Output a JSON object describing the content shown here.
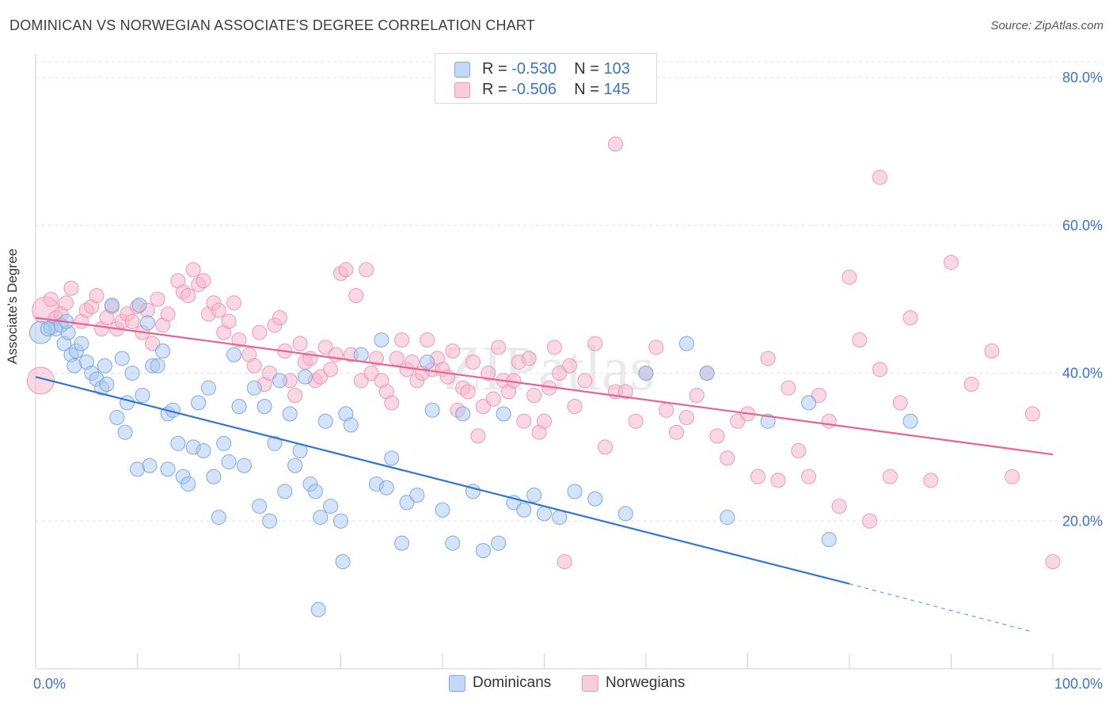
{
  "title": "DOMINICAN VS NORWEGIAN ASSOCIATE'S DEGREE CORRELATION CHART",
  "source": "Source: ZipAtlas.com",
  "watermark": "ZIPatlas",
  "legend_stats": [
    {
      "r_label": "R = ",
      "r_value": "-0.530",
      "n_label": "N = ",
      "n_value": "103"
    },
    {
      "r_label": "R = ",
      "r_value": "-0.506",
      "n_label": "N = ",
      "n_value": "145"
    }
  ],
  "bottom_legend": [
    "Dominicans",
    "Norwegians"
  ],
  "colors": {
    "blue_fill": "#a9c8f0",
    "blue_stroke": "#7ea9de",
    "blue_line": "#2f76cf",
    "pink_fill": "#f6b8cc",
    "pink_stroke": "#ee98b4",
    "pink_line": "#e8648f",
    "axis_label": "#3b73c7",
    "grid": "#e3e3e3"
  },
  "chart_data": {
    "type": "scatter",
    "title": "DOMINICAN VS NORWEGIAN ASSOCIATE'S DEGREE CORRELATION CHART",
    "xlabel": "",
    "ylabel": "Associate's Degree",
    "xlim": [
      0,
      100
    ],
    "ylim": [
      0,
      83
    ],
    "x_ticks": [
      "0.0%",
      "100.0%"
    ],
    "y_ticks": [
      "20.0%",
      "40.0%",
      "60.0%",
      "80.0%"
    ],
    "y_tick_values": [
      20,
      40,
      60,
      80
    ],
    "grid": "horizontal dashed",
    "legend_placement": "top-center and bottom",
    "series": [
      {
        "name": "Dominicans",
        "r": -0.53,
        "n": 103,
        "trend": {
          "x0": 0,
          "y0": 39.5,
          "x1": 80,
          "y1": 11.5,
          "dashed_to_x": 98,
          "dashed_to_y": 5
        },
        "points": [
          [
            0.5,
            45.5
          ],
          [
            1.5,
            46.2
          ],
          [
            2.0,
            46.0
          ],
          [
            2.5,
            46.5
          ],
          [
            1.2,
            46.0
          ],
          [
            2.8,
            44.0
          ],
          [
            3.2,
            45.5
          ],
          [
            3.5,
            42.5
          ],
          [
            4.0,
            43.0
          ],
          [
            3.0,
            47.0
          ],
          [
            4.5,
            44.0
          ],
          [
            5.0,
            41.5
          ],
          [
            3.8,
            41.0
          ],
          [
            5.5,
            40.0
          ],
          [
            6.0,
            39.2
          ],
          [
            6.5,
            38.0
          ],
          [
            7.0,
            38.5
          ],
          [
            6.8,
            41.0
          ],
          [
            7.5,
            49.2
          ],
          [
            8.5,
            42.0
          ],
          [
            8.0,
            34.0
          ],
          [
            9.0,
            36.0
          ],
          [
            8.8,
            32.0
          ],
          [
            9.5,
            40.0
          ],
          [
            10.2,
            49.2
          ],
          [
            10.5,
            37.0
          ],
          [
            11.0,
            46.8
          ],
          [
            11.5,
            41.0
          ],
          [
            12.0,
            41.0
          ],
          [
            12.5,
            43.0
          ],
          [
            13.0,
            34.5
          ],
          [
            13.5,
            35.0
          ],
          [
            10.0,
            27.0
          ],
          [
            11.2,
            27.5
          ],
          [
            13.0,
            27.0
          ],
          [
            14.0,
            30.5
          ],
          [
            14.5,
            26.0
          ],
          [
            15.0,
            25.0
          ],
          [
            15.5,
            30.0
          ],
          [
            16.0,
            36.0
          ],
          [
            16.5,
            29.5
          ],
          [
            17.0,
            38.0
          ],
          [
            17.5,
            26.0
          ],
          [
            18.0,
            20.5
          ],
          [
            18.5,
            30.5
          ],
          [
            19.0,
            28.0
          ],
          [
            19.5,
            42.5
          ],
          [
            20.0,
            35.5
          ],
          [
            20.5,
            27.5
          ],
          [
            21.5,
            38.0
          ],
          [
            22.0,
            22.0
          ],
          [
            22.5,
            35.5
          ],
          [
            23.0,
            20.0
          ],
          [
            23.5,
            30.5
          ],
          [
            24.0,
            39.0
          ],
          [
            24.5,
            24.0
          ],
          [
            25.0,
            34.5
          ],
          [
            25.5,
            27.5
          ],
          [
            26.0,
            29.5
          ],
          [
            26.5,
            39.5
          ],
          [
            27.0,
            25.0
          ],
          [
            27.5,
            24.0
          ],
          [
            28.0,
            20.5
          ],
          [
            28.5,
            33.5
          ],
          [
            29.0,
            22.0
          ],
          [
            30.0,
            20.0
          ],
          [
            30.5,
            34.5
          ],
          [
            31.0,
            33.0
          ],
          [
            32.0,
            42.5
          ],
          [
            33.5,
            25.0
          ],
          [
            34.0,
            44.5
          ],
          [
            34.5,
            24.5
          ],
          [
            35.0,
            28.5
          ],
          [
            36.0,
            17.0
          ],
          [
            36.5,
            22.5
          ],
          [
            37.5,
            23.5
          ],
          [
            38.5,
            41.5
          ],
          [
            39.0,
            35.0
          ],
          [
            40.0,
            21.5
          ],
          [
            41.0,
            17.0
          ],
          [
            42.0,
            34.5
          ],
          [
            43.0,
            24.0
          ],
          [
            44.0,
            16.0
          ],
          [
            45.5,
            17.0
          ],
          [
            46.0,
            34.5
          ],
          [
            47.0,
            22.5
          ],
          [
            48.0,
            21.5
          ],
          [
            49.0,
            23.5
          ],
          [
            50.0,
            21.0
          ],
          [
            51.5,
            20.5
          ],
          [
            53.0,
            24.0
          ],
          [
            55.0,
            23.0
          ],
          [
            58.0,
            21.0
          ],
          [
            60.0,
            40.0
          ],
          [
            64.0,
            44.0
          ],
          [
            66.0,
            40.0
          ],
          [
            68.0,
            20.5
          ],
          [
            72.0,
            33.5
          ],
          [
            76.0,
            36.0
          ],
          [
            78.0,
            17.5
          ],
          [
            86.0,
            33.5
          ],
          [
            30.2,
            14.5
          ],
          [
            27.8,
            8.0
          ]
        ]
      },
      {
        "name": "Norwegians",
        "r": -0.506,
        "n": 145,
        "trend": {
          "x0": 0,
          "y0": 47.5,
          "x1": 100,
          "y1": 29.0
        },
        "points": [
          [
            0.5,
            39.0
          ],
          [
            1.0,
            48.5
          ],
          [
            1.5,
            50.0
          ],
          [
            2.0,
            47.5
          ],
          [
            2.5,
            48.0
          ],
          [
            3.0,
            49.5
          ],
          [
            3.5,
            51.5
          ],
          [
            4.5,
            47.0
          ],
          [
            5.0,
            48.5
          ],
          [
            5.5,
            49.0
          ],
          [
            6.0,
            50.5
          ],
          [
            6.5,
            46.0
          ],
          [
            7.0,
            47.5
          ],
          [
            7.5,
            49.0
          ],
          [
            8.0,
            46.0
          ],
          [
            8.5,
            47.0
          ],
          [
            9.0,
            48.0
          ],
          [
            9.5,
            47.0
          ],
          [
            10.0,
            49.0
          ],
          [
            10.5,
            45.5
          ],
          [
            11.0,
            48.5
          ],
          [
            11.5,
            44.0
          ],
          [
            12.0,
            50.0
          ],
          [
            12.5,
            46.5
          ],
          [
            13.0,
            48.0
          ],
          [
            14.0,
            52.5
          ],
          [
            14.5,
            51.0
          ],
          [
            15.0,
            50.5
          ],
          [
            15.5,
            54.0
          ],
          [
            16.0,
            52.0
          ],
          [
            16.5,
            52.5
          ],
          [
            17.0,
            48.0
          ],
          [
            17.5,
            49.5
          ],
          [
            18.0,
            48.5
          ],
          [
            18.5,
            45.5
          ],
          [
            19.0,
            47.0
          ],
          [
            19.5,
            49.5
          ],
          [
            20.0,
            44.5
          ],
          [
            21.0,
            42.5
          ],
          [
            21.5,
            41.0
          ],
          [
            22.0,
            45.5
          ],
          [
            22.5,
            38.5
          ],
          [
            23.0,
            40.0
          ],
          [
            23.5,
            46.5
          ],
          [
            24.0,
            47.5
          ],
          [
            24.5,
            43.0
          ],
          [
            25.0,
            39.0
          ],
          [
            25.5,
            37.0
          ],
          [
            26.0,
            44.0
          ],
          [
            26.5,
            41.5
          ],
          [
            27.0,
            42.0
          ],
          [
            27.5,
            39.0
          ],
          [
            28.0,
            39.5
          ],
          [
            28.5,
            43.5
          ],
          [
            29.0,
            40.5
          ],
          [
            29.5,
            42.5
          ],
          [
            30.0,
            53.5
          ],
          [
            30.5,
            54.0
          ],
          [
            31.0,
            42.5
          ],
          [
            31.5,
            50.5
          ],
          [
            32.0,
            39.0
          ],
          [
            32.5,
            54.0
          ],
          [
            33.0,
            40.0
          ],
          [
            33.5,
            42.0
          ],
          [
            34.0,
            39.0
          ],
          [
            34.5,
            37.5
          ],
          [
            35.0,
            36.0
          ],
          [
            35.5,
            42.0
          ],
          [
            36.0,
            44.5
          ],
          [
            36.5,
            40.5
          ],
          [
            37.0,
            41.5
          ],
          [
            37.5,
            39.0
          ],
          [
            38.0,
            40.0
          ],
          [
            38.5,
            44.5
          ],
          [
            39.0,
            40.5
          ],
          [
            39.5,
            42.0
          ],
          [
            40.0,
            40.5
          ],
          [
            40.5,
            39.5
          ],
          [
            41.0,
            43.0
          ],
          [
            41.5,
            35.0
          ],
          [
            42.0,
            38.0
          ],
          [
            42.5,
            37.5
          ],
          [
            43.0,
            41.5
          ],
          [
            43.5,
            31.5
          ],
          [
            44.0,
            35.5
          ],
          [
            44.5,
            40.0
          ],
          [
            45.0,
            36.5
          ],
          [
            45.5,
            43.5
          ],
          [
            46.0,
            39.0
          ],
          [
            46.5,
            37.5
          ],
          [
            47.0,
            39.0
          ],
          [
            47.5,
            41.5
          ],
          [
            48.0,
            33.5
          ],
          [
            48.5,
            42.0
          ],
          [
            49.0,
            37.0
          ],
          [
            49.5,
            32.0
          ],
          [
            50.0,
            33.5
          ],
          [
            50.5,
            38.0
          ],
          [
            51.0,
            43.5
          ],
          [
            51.5,
            40.0
          ],
          [
            52.5,
            41.0
          ],
          [
            53.0,
            35.5
          ],
          [
            54.0,
            39.0
          ],
          [
            55.0,
            44.0
          ],
          [
            56.0,
            30.0
          ],
          [
            57.0,
            37.5
          ],
          [
            58.0,
            37.5
          ],
          [
            59.0,
            33.5
          ],
          [
            60.0,
            40.0
          ],
          [
            61.0,
            43.5
          ],
          [
            62.0,
            35.0
          ],
          [
            63.0,
            32.0
          ],
          [
            64.0,
            34.0
          ],
          [
            65.0,
            37.0
          ],
          [
            66.0,
            40.0
          ],
          [
            67.0,
            31.5
          ],
          [
            68.0,
            28.5
          ],
          [
            69.0,
            33.5
          ],
          [
            70.0,
            34.5
          ],
          [
            71.0,
            26.0
          ],
          [
            72.0,
            42.0
          ],
          [
            73.0,
            25.5
          ],
          [
            74.0,
            38.0
          ],
          [
            75.0,
            29.5
          ],
          [
            76.0,
            26.0
          ],
          [
            77.0,
            37.0
          ],
          [
            78.0,
            33.5
          ],
          [
            79.0,
            22.0
          ],
          [
            80.0,
            53.0
          ],
          [
            81.0,
            44.5
          ],
          [
            82.0,
            20.0
          ],
          [
            83.0,
            40.5
          ],
          [
            84.0,
            26.0
          ],
          [
            85.0,
            36.0
          ],
          [
            86.0,
            47.5
          ],
          [
            88.0,
            25.5
          ],
          [
            90.0,
            55.0
          ],
          [
            92.0,
            38.5
          ],
          [
            94.0,
            43.0
          ],
          [
            96.0,
            26.0
          ],
          [
            98.0,
            34.5
          ],
          [
            57.0,
            71.0
          ],
          [
            83.0,
            66.5
          ],
          [
            100.0,
            14.5
          ],
          [
            52.0,
            14.5
          ]
        ]
      }
    ]
  }
}
